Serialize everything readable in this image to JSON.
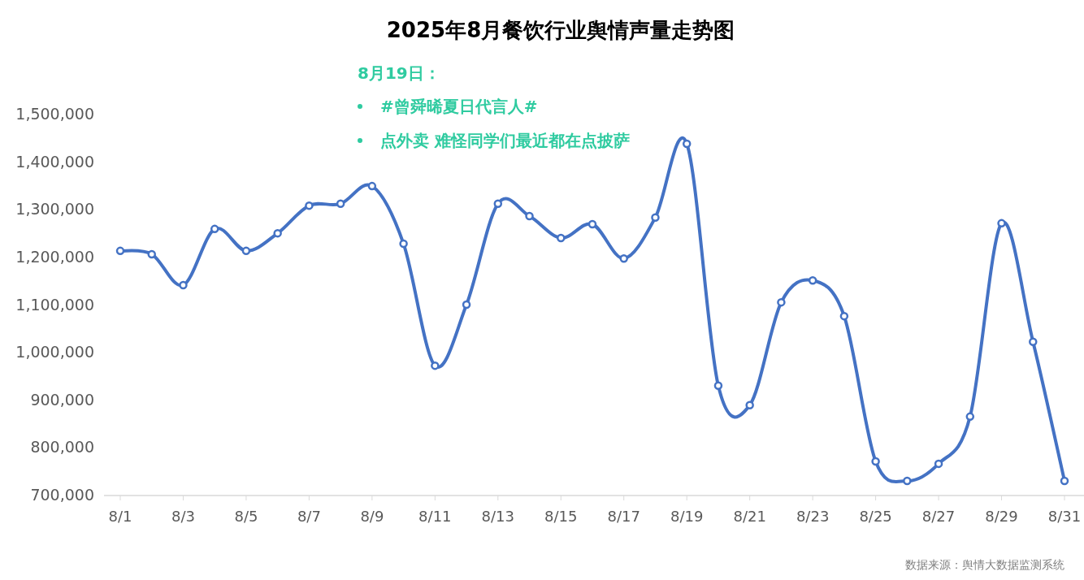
{
  "chart_data": {
    "type": "line",
    "title": "2025年8月餐饮行业舆情声量走势图",
    "annotations": [
      "8月19日：",
      "#曾舜晞夏日代言人#",
      "点外卖 难怪同学们最近都在点披萨",
      "数据来源：舆情大数据监测系统"
    ],
    "categories": [
      "8/1",
      null,
      "8/3",
      null,
      "8/5",
      null,
      "8/7",
      null,
      "8/9",
      null,
      "8/11",
      null,
      "8/13",
      null,
      "8/15",
      null,
      "8/17",
      null,
      "8/19",
      null,
      "8/21",
      null,
      "8/23",
      null,
      "8/25",
      null,
      "8/27",
      null,
      "8/29",
      null,
      "8/31"
    ],
    "series": [
      {
        "color": "#4472c4",
        "values": [
          1212000,
          1205000,
          1140000,
          1258000,
          1212000,
          1249000,
          1307000,
          1311000,
          1348000,
          1227000,
          971000,
          1099000,
          1311000,
          1285000,
          1239000,
          1268000,
          1196000,
          1282000,
          1437000,
          929000,
          888000,
          1104000,
          1150000,
          1075000,
          770000,
          729000,
          765000,
          864000,
          1270000,
          1021000,
          729000
        ]
      }
    ],
    "ylim": [
      700000,
      1500000
    ],
    "yticks": [
      {
        "value": 700000,
        "label": "700,000"
      },
      {
        "value": 800000,
        "label": "800,000"
      },
      {
        "value": 900000,
        "label": "900,000"
      },
      {
        "value": 1000000,
        "label": "1,000,000"
      },
      {
        "value": 1100000,
        "label": "1,100,000"
      },
      {
        "value": 1200000,
        "label": "1,200,000"
      },
      {
        "value": 1300000,
        "label": "1,300,000"
      },
      {
        "value": 1400000,
        "label": "1,400,000"
      },
      {
        "value": 1500000,
        "label": "1,500,000"
      }
    ],
    "marker": "circle",
    "line_style": "solid",
    "grid": false
  }
}
